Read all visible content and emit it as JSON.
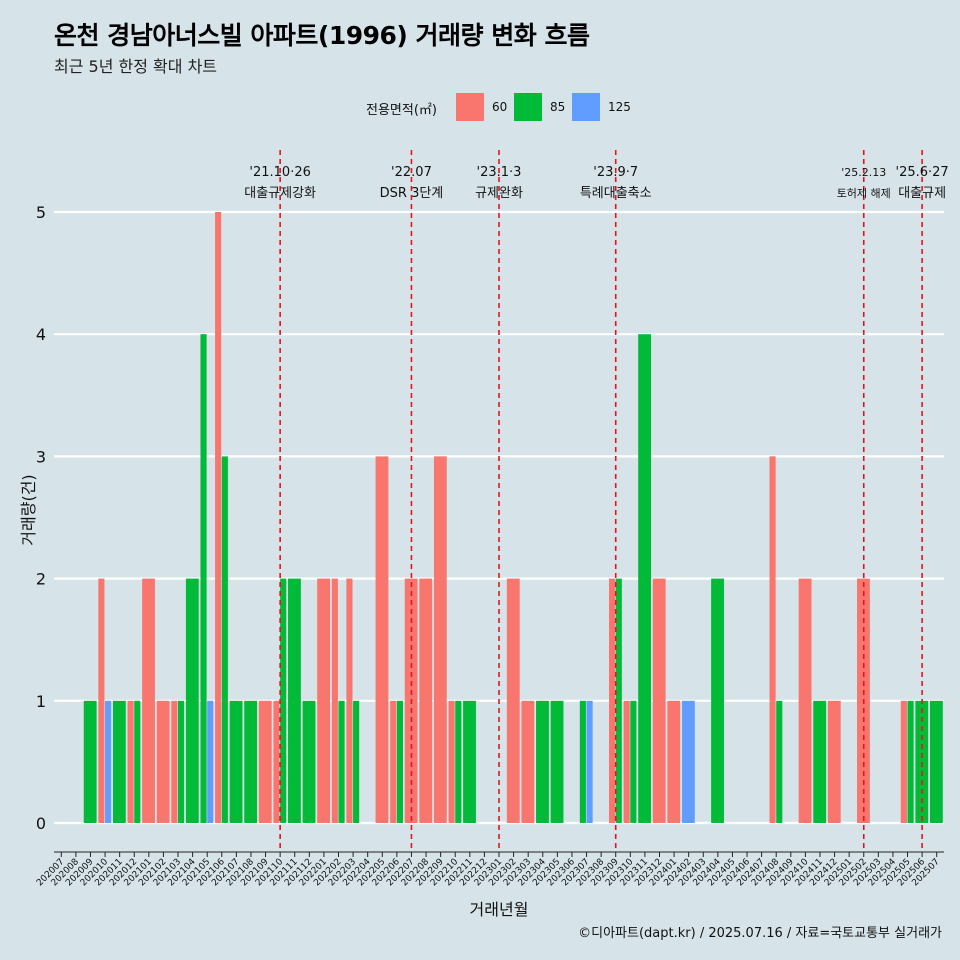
{
  "title": "온천 경남아너스빌 아파트(1996) 거래량 변화 흐름",
  "subtitle": "최근 5년 한정 확대 차트",
  "caption": "©디아파트(dapt.kr) / 2025.07.16 / 자료=국토교통부 실거래가",
  "colors": {
    "background": "#d6e4ea",
    "gridline": "#ffffff",
    "event_line": "#e8141c",
    "size_60": "#f8766d",
    "size_85": "#00ba38",
    "size_125": "#619cff"
  },
  "chart_data": {
    "type": "bar",
    "title": "온천 경남아너스빌 아파트(1996) 거래량 변화 흐름",
    "subtitle": "최근 5년 한정 확대 차트",
    "xlabel": "거래년월",
    "ylabel": "거래량(건)",
    "ylim": [
      0,
      5
    ],
    "yticks": [
      0,
      1,
      2,
      3,
      4,
      5
    ],
    "grid": true,
    "legend": {
      "title": "전용면적(㎡)",
      "position": "top",
      "entries": [
        "60",
        "85",
        "125"
      ]
    },
    "categories": [
      "202007",
      "202008",
      "202009",
      "202010",
      "202011",
      "202012",
      "202101",
      "202102",
      "202103",
      "202104",
      "202105",
      "202106",
      "202107",
      "202108",
      "202109",
      "202110",
      "202111",
      "202112",
      "202201",
      "202202",
      "202203",
      "202204",
      "202205",
      "202206",
      "202207",
      "202208",
      "202209",
      "202210",
      "202211",
      "202212",
      "202301",
      "202302",
      "202303",
      "202304",
      "202305",
      "202306",
      "202307",
      "202308",
      "202309",
      "202310",
      "202311",
      "202312",
      "202401",
      "202402",
      "202403",
      "202404",
      "202405",
      "202406",
      "202407",
      "202408",
      "202409",
      "202410",
      "202411",
      "202412",
      "202501",
      "202502",
      "202503",
      "202504",
      "202505",
      "202506",
      "202507"
    ],
    "series": [
      {
        "name": "60",
        "values": [
          0,
          0,
          0,
          2,
          0,
          1,
          2,
          1,
          1,
          0,
          0,
          5,
          0,
          0,
          1,
          1,
          0,
          0,
          2,
          2,
          2,
          0,
          3,
          1,
          2,
          2,
          3,
          1,
          0,
          0,
          0,
          2,
          1,
          0,
          0,
          0,
          0,
          0,
          2,
          1,
          0,
          2,
          1,
          0,
          0,
          0,
          0,
          0,
          0,
          3,
          0,
          2,
          0,
          1,
          0,
          2,
          0,
          0,
          1,
          0,
          0
        ]
      },
      {
        "name": "85",
        "values": [
          0,
          0,
          1,
          0,
          1,
          1,
          0,
          0,
          1,
          2,
          4,
          3,
          1,
          1,
          0,
          2,
          2,
          1,
          0,
          1,
          1,
          0,
          0,
          1,
          0,
          0,
          0,
          1,
          1,
          0,
          0,
          0,
          0,
          1,
          1,
          0,
          1,
          0,
          2,
          1,
          4,
          0,
          0,
          0,
          0,
          2,
          0,
          0,
          0,
          1,
          0,
          0,
          1,
          0,
          0,
          0,
          0,
          0,
          1,
          1,
          1
        ]
      },
      {
        "name": "125",
        "values": [
          0,
          0,
          0,
          1,
          0,
          0,
          0,
          0,
          0,
          0,
          1,
          0,
          0,
          0,
          0,
          0,
          0,
          0,
          0,
          0,
          0,
          0,
          0,
          0,
          0,
          0,
          0,
          0,
          0,
          0,
          0,
          0,
          0,
          0,
          0,
          0,
          1,
          0,
          0,
          0,
          0,
          0,
          0,
          1,
          0,
          0,
          0,
          0,
          0,
          0,
          0,
          0,
          0,
          0,
          0,
          0,
          0,
          0,
          0,
          0,
          0
        ]
      }
    ],
    "annotations": [
      {
        "category": "202110",
        "date": "'21.10·26",
        "text": "대출규제강화"
      },
      {
        "category": "202207",
        "date": "'22.07",
        "text": "DSR 3단계"
      },
      {
        "category": "202301",
        "date": "'23.1·3",
        "text": "규제완화"
      },
      {
        "category": "202309",
        "date": "'23.9·7",
        "text": "특례대출축소"
      },
      {
        "category": "202502",
        "date": "'25.2.13",
        "text": "토허제 해제"
      },
      {
        "category": "202506",
        "date": "'25.6·27",
        "text": "대출규제"
      }
    ]
  }
}
